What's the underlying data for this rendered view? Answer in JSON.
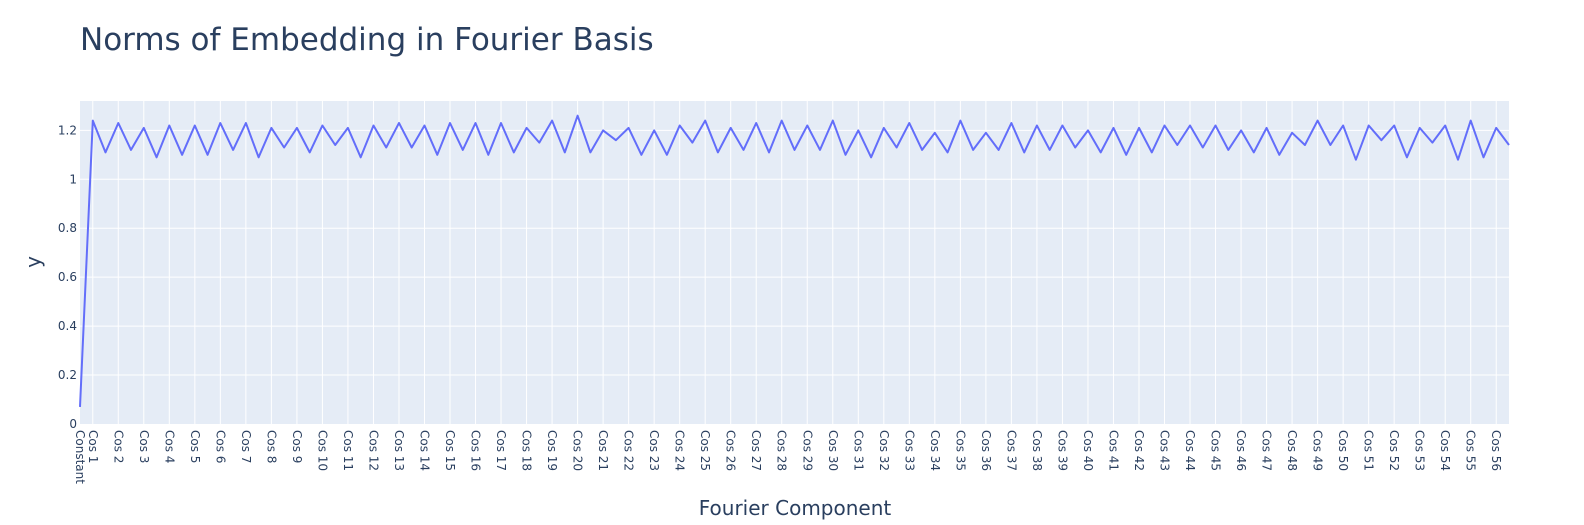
{
  "chart_data": {
    "type": "line",
    "title": "Norms of Embedding in Fourier Basis",
    "xlabel": "Fourier Component",
    "ylabel": "y",
    "ylim": [
      0,
      1.32
    ],
    "yticks": [
      0,
      0.2,
      0.4,
      0.6,
      0.8,
      1,
      1.2
    ],
    "ytick_labels": [
      "0",
      "0.2",
      "0.4",
      "0.6",
      "0.8",
      "1",
      "1.2"
    ],
    "x_tick_labels": [
      "Constant",
      "Cos 1",
      "Cos 2",
      "Cos 3",
      "Cos 4",
      "Cos 5",
      "Cos 6",
      "Cos 7",
      "Cos 8",
      "Cos 9",
      "Cos 10",
      "Cos 11",
      "Cos 12",
      "Cos 13",
      "Cos 14",
      "Cos 15",
      "Cos 16",
      "Cos 17",
      "Cos 18",
      "Cos 19",
      "Cos 20",
      "Cos 21",
      "Cos 22",
      "Cos 23",
      "Cos 24",
      "Cos 25",
      "Cos 26",
      "Cos 27",
      "Cos 28",
      "Cos 29",
      "Cos 30",
      "Cos 31",
      "Cos 32",
      "Cos 33",
      "Cos 34",
      "Cos 35",
      "Cos 36",
      "Cos 37",
      "Cos 38",
      "Cos 39",
      "Cos 40",
      "Cos 41",
      "Cos 42",
      "Cos 43",
      "Cos 44",
      "Cos 45",
      "Cos 46",
      "Cos 47",
      "Cos 48",
      "Cos 49",
      "Cos 50",
      "Cos 51",
      "Cos 52",
      "Cos 53",
      "Cos 54",
      "Cos 55",
      "Cos 56"
    ],
    "grid": true,
    "series": [
      {
        "color": "#636efa",
        "values": [
          0.07,
          1.24,
          1.11,
          1.23,
          1.12,
          1.21,
          1.09,
          1.22,
          1.1,
          1.22,
          1.1,
          1.23,
          1.12,
          1.23,
          1.09,
          1.21,
          1.13,
          1.21,
          1.11,
          1.22,
          1.14,
          1.21,
          1.09,
          1.22,
          1.13,
          1.23,
          1.13,
          1.22,
          1.1,
          1.23,
          1.12,
          1.23,
          1.1,
          1.23,
          1.11,
          1.21,
          1.15,
          1.24,
          1.11,
          1.26,
          1.11,
          1.2,
          1.16,
          1.21,
          1.1,
          1.2,
          1.1,
          1.22,
          1.15,
          1.24,
          1.11,
          1.21,
          1.12,
          1.23,
          1.11,
          1.24,
          1.12,
          1.22,
          1.12,
          1.24,
          1.1,
          1.2,
          1.09,
          1.21,
          1.13,
          1.23,
          1.12,
          1.19,
          1.11,
          1.24,
          1.12,
          1.19,
          1.12,
          1.23,
          1.11,
          1.22,
          1.12,
          1.22,
          1.13,
          1.2,
          1.11,
          1.21,
          1.1,
          1.21,
          1.11,
          1.22,
          1.14,
          1.22,
          1.13,
          1.22,
          1.12,
          1.2,
          1.11,
          1.21,
          1.1,
          1.19,
          1.14,
          1.24,
          1.14,
          1.22,
          1.08,
          1.22,
          1.16,
          1.22,
          1.09,
          1.21,
          1.15,
          1.22,
          1.08,
          1.24,
          1.09,
          1.21,
          1.14
        ]
      }
    ]
  }
}
